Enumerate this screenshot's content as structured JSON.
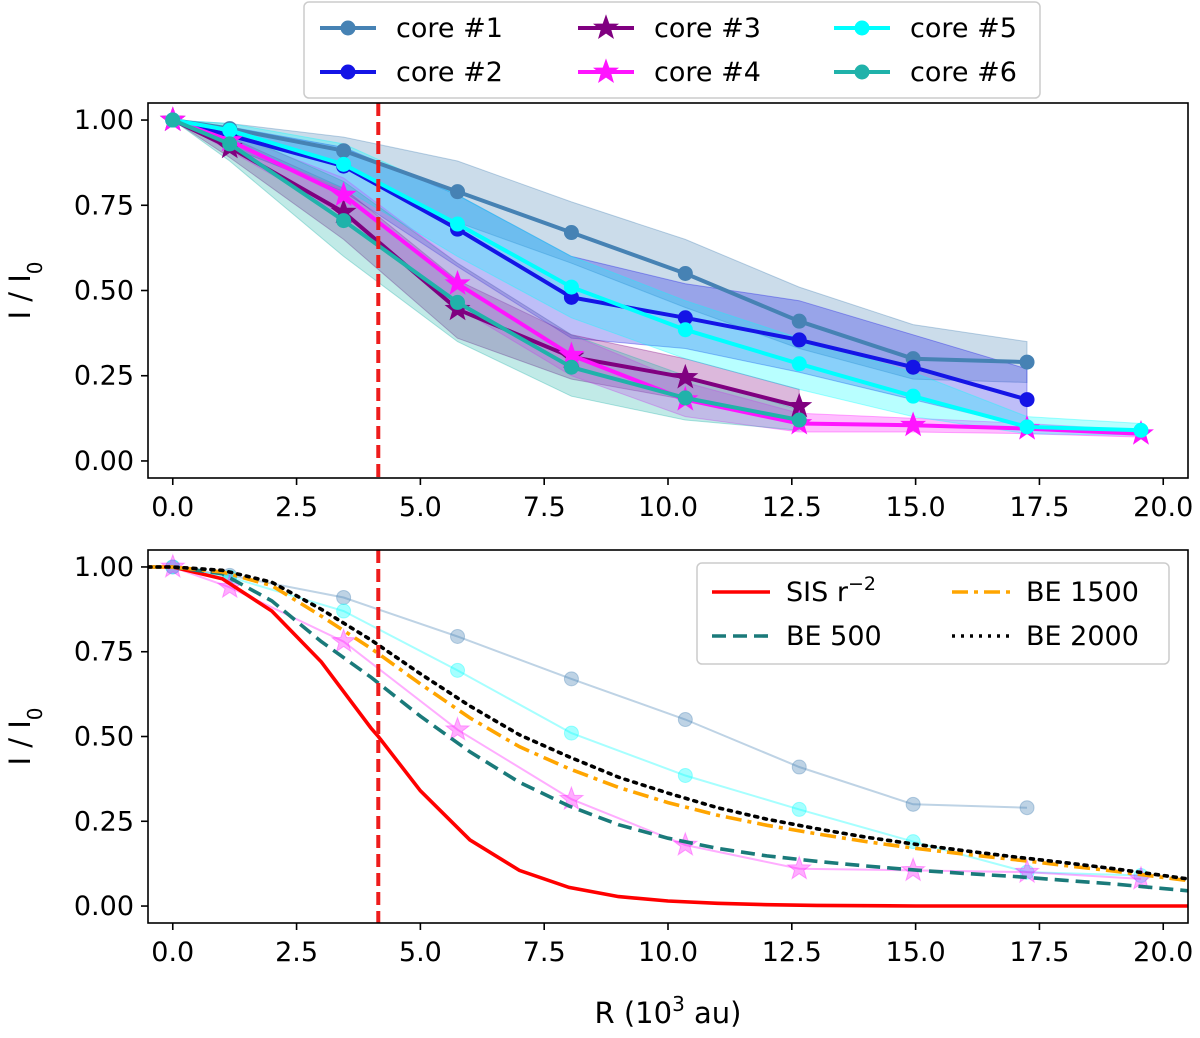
{
  "chart_data": [
    {
      "type": "line",
      "panel": "top",
      "xlabel": "",
      "ylabel": "I / I",
      "ylabel_sub": "0",
      "xlim": [
        -0.5,
        20.5
      ],
      "ylim": [
        -0.05,
        1.05
      ],
      "xticks": [
        "0.0",
        "2.5",
        "5.0",
        "7.5",
        "10.0",
        "12.5",
        "15.0",
        "17.5",
        "20.0"
      ],
      "yticks": [
        "0.00",
        "0.25",
        "0.50",
        "0.75",
        "1.00"
      ],
      "grid": false,
      "legend_position": "above-plot",
      "vline": {
        "x": 4.15,
        "color": "#ee1c1c",
        "style": "dashed"
      },
      "series": [
        {
          "name": "core #1",
          "color": "#4682b4",
          "marker": "circle",
          "x": [
            0,
            1.15,
            3.45,
            5.75,
            8.05,
            10.35,
            12.65,
            14.95,
            17.25
          ],
          "y": [
            1.0,
            0.975,
            0.91,
            0.79,
            0.67,
            0.55,
            0.41,
            0.3,
            0.29
          ],
          "lower": [
            1.0,
            0.95,
            0.86,
            0.7,
            0.58,
            0.45,
            0.33,
            0.24,
            0.23
          ],
          "upper": [
            1.0,
            0.99,
            0.95,
            0.88,
            0.76,
            0.65,
            0.51,
            0.4,
            0.35
          ]
        },
        {
          "name": "core #2",
          "color": "#1414e6",
          "marker": "circle",
          "x": [
            0,
            1.15,
            3.45,
            5.75,
            8.05,
            10.35,
            12.65,
            14.95,
            17.25
          ],
          "y": [
            1.0,
            0.955,
            0.865,
            0.68,
            0.48,
            0.42,
            0.355,
            0.275,
            0.18
          ],
          "lower": [
            1.0,
            0.92,
            0.79,
            0.57,
            0.36,
            0.33,
            0.26,
            0.18,
            0.1
          ],
          "upper": [
            1.0,
            0.98,
            0.92,
            0.78,
            0.6,
            0.52,
            0.47,
            0.37,
            0.27
          ]
        },
        {
          "name": "core #3",
          "color": "#800080",
          "marker": "star",
          "x": [
            0,
            1.15,
            3.45,
            5.75,
            8.05,
            10.35,
            12.65
          ],
          "y": [
            1.0,
            0.92,
            0.73,
            0.445,
            0.305,
            0.245,
            0.16
          ],
          "lower": [
            1.0,
            0.89,
            0.65,
            0.36,
            0.24,
            0.18,
            0.11
          ],
          "upper": [
            1.0,
            0.95,
            0.8,
            0.53,
            0.37,
            0.3,
            0.21
          ]
        },
        {
          "name": "core #4",
          "color": "#ff14ff",
          "marker": "star",
          "x": [
            0,
            1.15,
            3.45,
            5.75,
            8.05,
            10.35,
            12.65,
            14.95,
            17.25,
            19.55
          ],
          "y": [
            1.0,
            0.94,
            0.78,
            0.52,
            0.31,
            0.18,
            0.11,
            0.105,
            0.095,
            0.08
          ],
          "lower": [
            1.0,
            0.91,
            0.72,
            0.45,
            0.25,
            0.13,
            0.085,
            0.085,
            0.08,
            0.07
          ],
          "upper": [
            1.0,
            0.96,
            0.83,
            0.58,
            0.37,
            0.23,
            0.14,
            0.125,
            0.11,
            0.09
          ]
        },
        {
          "name": "core #5",
          "color": "#00ffff",
          "marker": "circle",
          "x": [
            0,
            1.15,
            3.45,
            5.75,
            8.05,
            10.35,
            12.65,
            14.95,
            17.25,
            19.55
          ],
          "y": [
            1.0,
            0.97,
            0.87,
            0.695,
            0.51,
            0.385,
            0.285,
            0.19,
            0.1,
            0.09
          ],
          "lower": [
            1.0,
            0.94,
            0.8,
            0.6,
            0.42,
            0.3,
            0.21,
            0.13,
            0.08,
            0.075
          ],
          "upper": [
            1.0,
            0.99,
            0.93,
            0.78,
            0.6,
            0.47,
            0.36,
            0.26,
            0.13,
            0.11
          ]
        },
        {
          "name": "core #6",
          "color": "#20b2aa",
          "marker": "circle",
          "x": [
            0,
            1.15,
            3.45,
            5.75,
            8.05,
            10.35,
            12.65
          ],
          "y": [
            1.0,
            0.93,
            0.705,
            0.465,
            0.275,
            0.185,
            0.12
          ],
          "lower": [
            1.0,
            0.88,
            0.6,
            0.35,
            0.19,
            0.12,
            0.09
          ],
          "upper": [
            1.0,
            0.97,
            0.82,
            0.58,
            0.37,
            0.25,
            0.15
          ]
        }
      ]
    },
    {
      "type": "line",
      "panel": "bottom",
      "xlabel": "R (10",
      "xlabel_sup": "3",
      "xlabel_tail": " au)",
      "ylabel": "I / I",
      "ylabel_sub": "0",
      "xlim": [
        -0.5,
        20.5
      ],
      "ylim": [
        -0.05,
        1.05
      ],
      "xticks": [
        "0.0",
        "2.5",
        "5.0",
        "7.5",
        "10.0",
        "12.5",
        "15.0",
        "17.5",
        "20.0"
      ],
      "yticks": [
        "0.00",
        "0.25",
        "0.50",
        "0.75",
        "1.00"
      ],
      "grid": false,
      "legend_position": "top-right",
      "vline": {
        "x": 4.15,
        "color": "#ee1c1c",
        "style": "dashed"
      },
      "models": [
        {
          "name": "SIS r",
          "name_sup": "−2",
          "color": "#ff0000",
          "style": "solid",
          "x": [
            -0.5,
            0,
            1,
            2,
            3,
            4,
            4.15,
            5,
            6,
            7,
            8,
            9,
            10,
            11,
            12,
            13,
            14,
            15,
            17,
            20.5
          ],
          "y": [
            1.0,
            1.0,
            0.965,
            0.87,
            0.72,
            0.525,
            0.5,
            0.34,
            0.195,
            0.105,
            0.055,
            0.028,
            0.015,
            0.008,
            0.004,
            0.002,
            0.001,
            0.0,
            0.0,
            0.0
          ]
        },
        {
          "name": "BE 500",
          "color": "#1a7a7a",
          "style": "dashed",
          "x": [
            -0.5,
            0,
            1,
            2,
            3,
            4,
            5,
            6,
            7,
            8,
            9,
            10,
            11,
            12,
            13,
            14,
            15,
            16,
            17,
            18,
            19,
            20.5
          ],
          "y": [
            1.0,
            1.0,
            0.98,
            0.9,
            0.78,
            0.675,
            0.56,
            0.455,
            0.365,
            0.295,
            0.24,
            0.2,
            0.17,
            0.148,
            0.132,
            0.118,
            0.106,
            0.096,
            0.087,
            0.076,
            0.065,
            0.045
          ]
        },
        {
          "name": "BE 1500",
          "color": "#ffa500",
          "style": "dashdot",
          "x": [
            -0.5,
            0,
            1,
            2,
            3,
            4,
            5,
            6,
            7,
            8,
            9,
            10,
            11,
            12,
            13,
            14,
            15,
            16,
            17,
            18,
            19,
            20.5
          ],
          "y": [
            1.0,
            1.0,
            0.985,
            0.945,
            0.855,
            0.76,
            0.655,
            0.555,
            0.47,
            0.405,
            0.35,
            0.305,
            0.268,
            0.238,
            0.213,
            0.19,
            0.17,
            0.153,
            0.137,
            0.12,
            0.103,
            0.075
          ]
        },
        {
          "name": "BE 2000",
          "color": "#000000",
          "style": "dotted",
          "x": [
            -0.5,
            0,
            1,
            2,
            3,
            4,
            5,
            6,
            7,
            8,
            9,
            10,
            11,
            12,
            13,
            14,
            15,
            16,
            17,
            18,
            19,
            20.5
          ],
          "y": [
            1.0,
            1.0,
            0.99,
            0.955,
            0.875,
            0.785,
            0.685,
            0.59,
            0.505,
            0.44,
            0.38,
            0.333,
            0.29,
            0.256,
            0.228,
            0.203,
            0.182,
            0.163,
            0.145,
            0.128,
            0.11,
            0.08
          ]
        }
      ],
      "overlays": [
        {
          "ref": "core #1",
          "color": "#4682b4",
          "marker": "circle",
          "x": [
            0,
            1.15,
            3.45,
            5.75,
            8.05,
            10.35,
            12.65,
            14.95,
            17.25
          ],
          "y": [
            1.0,
            0.975,
            0.91,
            0.795,
            0.67,
            0.55,
            0.41,
            0.3,
            0.29
          ]
        },
        {
          "ref": "core #5",
          "color": "#00ffff",
          "marker": "circle",
          "x": [
            0,
            1.15,
            3.45,
            5.75,
            8.05,
            10.35,
            12.65,
            14.95,
            17.25,
            19.55
          ],
          "y": [
            1.0,
            0.97,
            0.87,
            0.695,
            0.51,
            0.385,
            0.285,
            0.19,
            0.1,
            0.09
          ]
        },
        {
          "ref": "core #4",
          "color": "#ff14ff",
          "marker": "star",
          "x": [
            0,
            1.15,
            3.45,
            5.75,
            8.05,
            10.35,
            12.65,
            14.95,
            17.25,
            19.55
          ],
          "y": [
            1.0,
            0.94,
            0.78,
            0.52,
            0.315,
            0.18,
            0.11,
            0.105,
            0.1,
            0.08
          ]
        }
      ]
    }
  ]
}
